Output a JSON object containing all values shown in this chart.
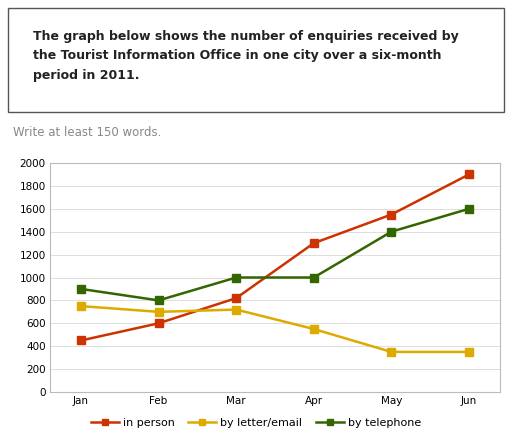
{
  "months": [
    "Jan",
    "Feb",
    "Mar",
    "Apr",
    "May",
    "Jun"
  ],
  "in_person": [
    450,
    600,
    820,
    1300,
    1550,
    1900
  ],
  "by_letter_email": [
    750,
    700,
    720,
    550,
    350,
    350
  ],
  "by_telephone": [
    900,
    800,
    1000,
    1000,
    1400,
    1600
  ],
  "in_person_color": "#cc3300",
  "by_letter_color": "#ddaa00",
  "by_telephone_color": "#336600",
  "ylim": [
    0,
    2000
  ],
  "yticks": [
    0,
    200,
    400,
    600,
    800,
    1000,
    1200,
    1400,
    1600,
    1800,
    2000
  ],
  "legend_labels": [
    "in person",
    "by letter/email",
    "by telephone"
  ],
  "title_box_text": "The graph below shows the number of enquiries received by\nthe Tourist Information Office in one city over a six-month\nperiod in 2011.",
  "subtitle": "Write at least 150 words.",
  "marker": "s",
  "linewidth": 1.8,
  "markersize": 6,
  "title_fontsize": 9,
  "subtitle_fontsize": 8.5,
  "tick_fontsize": 7.5,
  "legend_fontsize": 8
}
